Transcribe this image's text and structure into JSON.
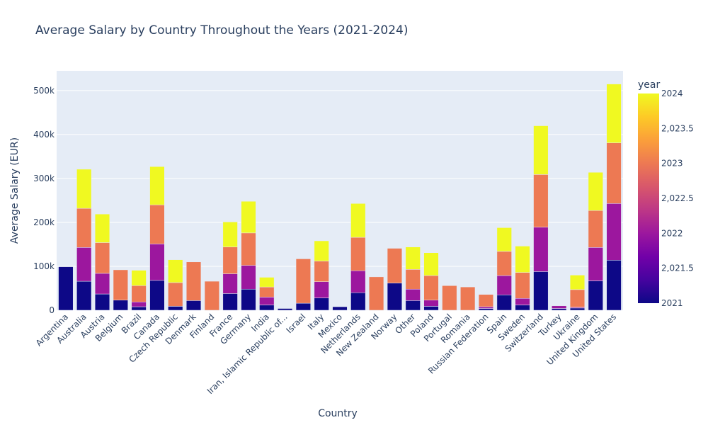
{
  "chart_data": {
    "type": "bar",
    "barmode": "stack",
    "title": "Average Salary by Country Throughout the Years (2021-2024)",
    "xlabel": "Country",
    "ylabel": "Average Salary (EUR)",
    "ylim": [
      0,
      545000
    ],
    "y_ticks": [
      0,
      100000,
      200000,
      300000,
      400000,
      500000
    ],
    "y_tick_labels": [
      "0",
      "100k",
      "200k",
      "300k",
      "400k",
      "500k"
    ],
    "grid": true,
    "categories": [
      "Argentina",
      "Australia",
      "Austria",
      "Belgium",
      "Brazil",
      "Canada",
      "Czech Republic",
      "Denmark",
      "Finland",
      "France",
      "Germany",
      "India",
      "Iran, Islamic Republic of...",
      "Israel",
      "Italy",
      "Mexico",
      "Netherlands",
      "New Zealand",
      "Norway",
      "Other",
      "Poland",
      "Portugal",
      "Romania",
      "Russian Federation",
      "Spain",
      "Sweden",
      "Switzerland",
      "Turkey",
      "Ukraine",
      "United Kingdom",
      "United States"
    ],
    "series": [
      {
        "name": "2021",
        "color": "#0d0887",
        "values": [
          99000,
          66000,
          37000,
          23000,
          8000,
          68000,
          9000,
          22000,
          0,
          38000,
          48000,
          12000,
          4000,
          16000,
          28000,
          8000,
          40000,
          0,
          62000,
          22000,
          9000,
          0,
          0,
          4000,
          35000,
          12000,
          88000,
          4000,
          5000,
          67000,
          114000
        ]
      },
      {
        "name": "2022",
        "color": "#9c179e",
        "values": [
          0,
          77000,
          47000,
          0,
          11000,
          83000,
          0,
          0,
          0,
          45000,
          54000,
          18000,
          0,
          0,
          37000,
          0,
          50000,
          0,
          0,
          26000,
          14000,
          0,
          0,
          4000,
          44000,
          15000,
          101000,
          6000,
          2000,
          76000,
          129000
        ]
      },
      {
        "name": "2023",
        "color": "#ed7953",
        "values": [
          0,
          89000,
          70000,
          69000,
          37000,
          89000,
          54000,
          88000,
          66000,
          61000,
          74000,
          23000,
          0,
          101000,
          47000,
          0,
          76000,
          76000,
          79000,
          45000,
          56000,
          56000,
          53000,
          28000,
          55000,
          59000,
          120000,
          0,
          40000,
          84000,
          138000
        ]
      },
      {
        "name": "2024",
        "color": "#f0f921",
        "values": [
          0,
          89000,
          65000,
          0,
          35000,
          87000,
          52000,
          0,
          0,
          57000,
          72000,
          22000,
          0,
          0,
          46000,
          0,
          77000,
          0,
          0,
          51000,
          52000,
          0,
          0,
          0,
          54000,
          60000,
          111000,
          0,
          33000,
          87000,
          134000
        ]
      }
    ],
    "colorbar": {
      "title": "year",
      "tick_labels": [
        "2021",
        "2,021.5",
        "2022",
        "2,022.5",
        "2023",
        "2,023.5",
        "2024"
      ],
      "colorscale": [
        "#0d0887",
        "#46039f",
        "#7201a8",
        "#9c179e",
        "#bd3786",
        "#d8576b",
        "#ed7953",
        "#fb9f3a",
        "#fdca26",
        "#f0f921"
      ]
    }
  }
}
